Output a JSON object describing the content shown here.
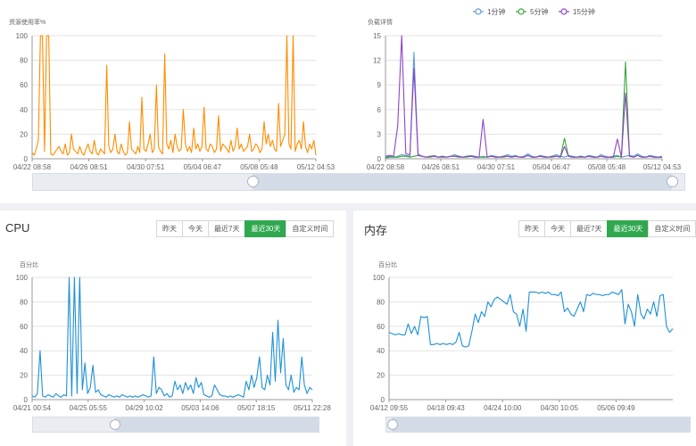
{
  "colors": {
    "resource": "#ff8c00",
    "load_1": "#5b9bd5",
    "load_5": "#3aa63a",
    "load_15": "#8e44c6",
    "cpu": "#1e90d6",
    "mem": "#1e90d6",
    "active_btn": "#2fa84f",
    "slider_fill": "#d3dbe6"
  },
  "cpu_panel": {
    "title": "CPU",
    "buttons": [
      {
        "label": "昨天",
        "active": false
      },
      {
        "label": "今天",
        "active": false
      },
      {
        "label": "最近7天",
        "active": false
      },
      {
        "label": "最近30天",
        "active": true
      },
      {
        "label": "自定义时间",
        "active": false
      }
    ]
  },
  "mem_panel": {
    "title": "内存",
    "buttons": [
      {
        "label": "昨天",
        "active": false
      },
      {
        "label": "今天",
        "active": false
      },
      {
        "label": "最近7天",
        "active": false
      },
      {
        "label": "最近30天",
        "active": true
      },
      {
        "label": "自定义时间",
        "active": false
      }
    ]
  },
  "chart_data": [
    {
      "id": "resource",
      "type": "line",
      "ylabel": "资源使用率%",
      "ylim": [
        0,
        100
      ],
      "yticks": [
        0,
        20,
        40,
        60,
        80,
        100
      ],
      "xticks": [
        "04/22 08:58",
        "04/26 08:51",
        "04/30 07:51",
        "05/04 06:47",
        "05/08 05:48",
        "05/12 04:53"
      ],
      "grid": true,
      "has_zoom_slider": true,
      "series": [
        {
          "values": [
            5,
            3,
            8,
            15,
            100,
            100,
            6,
            100,
            100,
            4,
            3,
            5,
            8,
            10,
            6,
            4,
            12,
            3,
            5,
            20,
            8,
            6,
            4,
            10,
            5,
            3,
            8,
            12,
            6,
            4,
            15,
            5,
            3,
            8,
            6,
            4,
            76,
            10,
            5,
            8,
            20,
            6,
            4,
            12,
            6,
            3,
            5,
            30,
            8,
            6,
            4,
            10,
            5,
            50,
            8,
            6,
            12,
            20,
            5,
            8,
            60,
            10,
            6,
            4,
            85,
            12,
            8,
            15,
            5,
            20,
            10,
            6,
            8,
            40,
            12,
            6,
            10,
            5,
            25,
            8,
            12,
            6,
            10,
            42,
            8,
            6,
            12,
            10,
            5,
            8,
            35,
            6,
            12,
            10,
            8,
            5,
            15,
            6,
            10,
            25,
            8,
            12,
            6,
            8,
            10,
            20,
            6,
            8,
            12,
            10,
            5,
            8,
            30,
            12,
            20,
            10,
            15,
            8,
            6,
            45,
            10,
            15,
            20,
            100,
            12,
            8,
            100,
            6,
            12,
            15,
            8,
            30,
            10,
            5,
            12,
            8,
            15,
            3
          ]
        }
      ]
    },
    {
      "id": "load",
      "type": "line",
      "ylabel": "负载详情",
      "ylim": [
        0,
        15
      ],
      "yticks": [
        0,
        3,
        6,
        9,
        12,
        15
      ],
      "xticks": [
        "04/22 08:58",
        "04/26 08:51",
        "04/30 07:51",
        "05/04 06:47",
        "05/08 05:48",
        "05/12 04:53"
      ],
      "legend_position": "top-right",
      "grid": true,
      "has_zoom_slider": true,
      "series": [
        {
          "name": "1分钟",
          "values": [
            0.2,
            0.3,
            0.2,
            0.3,
            0.5,
            0.4,
            0.3,
            13.0,
            0.6,
            0.3,
            0.2,
            0.3,
            0.4,
            0.2,
            0.3,
            0.2,
            0.3,
            0.5,
            0.3,
            0.2,
            0.3,
            0.4,
            0.3,
            0.2,
            0.3,
            0.2,
            0.4,
            0.3,
            0.2,
            0.3,
            0.5,
            0.3,
            0.4,
            0.2,
            0.3,
            0.6,
            0.3,
            0.2,
            0.4,
            0.3,
            0.2,
            0.3,
            0.5,
            0.3,
            0.2,
            0.4,
            0.3,
            0.2,
            0.3,
            0.2,
            0.4,
            0.3,
            0.2,
            0.5,
            0.3,
            0.2,
            0.3,
            0.4,
            0.2,
            0.3,
            0.4,
            0.3,
            0.6,
            0.3,
            0.2,
            0.4,
            0.3,
            0.2,
            0.3
          ]
        },
        {
          "name": "5分钟",
          "values": [
            0.1,
            0.2,
            0.2,
            0.2,
            0.3,
            0.3,
            0.2,
            0.3,
            0.4,
            0.3,
            0.2,
            0.2,
            0.3,
            0.2,
            0.2,
            0.2,
            0.3,
            0.3,
            0.2,
            0.2,
            0.2,
            0.3,
            0.2,
            0.2,
            0.2,
            0.2,
            0.3,
            0.2,
            0.2,
            0.2,
            0.3,
            0.2,
            0.3,
            0.2,
            0.2,
            0.4,
            0.2,
            0.2,
            0.3,
            0.2,
            0.2,
            0.2,
            0.3,
            0.2,
            2.5,
            0.3,
            0.2,
            0.2,
            0.2,
            0.2,
            0.3,
            0.2,
            0.2,
            0.3,
            0.2,
            0.2,
            0.2,
            0.3,
            0.2,
            11.8,
            0.3,
            0.2,
            0.4,
            0.2,
            0.2,
            0.3,
            0.2,
            0.2,
            0.2
          ]
        },
        {
          "name": "15分钟",
          "values": [
            0.3,
            0.4,
            0.3,
            4.0,
            15.0,
            0.6,
            0.5,
            11.0,
            0.4,
            0.3,
            0.2,
            0.3,
            0.3,
            0.2,
            0.3,
            0.2,
            0.3,
            0.3,
            0.3,
            0.2,
            0.3,
            0.3,
            0.2,
            0.2,
            4.8,
            0.2,
            0.3,
            0.2,
            0.2,
            0.3,
            0.3,
            0.2,
            0.3,
            0.2,
            0.2,
            0.4,
            0.2,
            0.2,
            0.3,
            0.2,
            0.2,
            0.3,
            0.3,
            0.2,
            1.5,
            0.3,
            0.2,
            0.2,
            0.3,
            0.2,
            0.3,
            0.2,
            0.2,
            0.3,
            0.2,
            0.2,
            0.2,
            2.4,
            0.2,
            8.0,
            0.3,
            0.2,
            0.4,
            0.2,
            0.2,
            0.3,
            0.2,
            0.2,
            0.2
          ]
        }
      ]
    },
    {
      "id": "cpu",
      "type": "line",
      "ylabel": "百分比",
      "ylim": [
        0,
        100
      ],
      "yticks": [
        0,
        20,
        40,
        60,
        80,
        100
      ],
      "xticks": [
        "04/21 00:54",
        "04/25 05:55",
        "04/29 10:02",
        "05/03 14:06",
        "05/07 18:15",
        "05/11 22:28"
      ],
      "grid": true,
      "has_zoom_slider": true,
      "series": [
        {
          "values": [
            3,
            2,
            5,
            40,
            3,
            2,
            4,
            3,
            2,
            5,
            3,
            2,
            4,
            3,
            100,
            3,
            100,
            5,
            100,
            8,
            30,
            5,
            10,
            28,
            6,
            8,
            4,
            3,
            2,
            4,
            3,
            2,
            3,
            2,
            4,
            3,
            2,
            3,
            2,
            3,
            2,
            3,
            4,
            3,
            2,
            3,
            35,
            5,
            10,
            8,
            3,
            5,
            2,
            3,
            15,
            8,
            12,
            5,
            14,
            8,
            12,
            5,
            18,
            10,
            14,
            4,
            3,
            2,
            3,
            12,
            8,
            4,
            3,
            3,
            2,
            3,
            2,
            3,
            4,
            3,
            2,
            15,
            8,
            20,
            10,
            18,
            35,
            10,
            8,
            20,
            12,
            55,
            15,
            65,
            22,
            50,
            12,
            8,
            20,
            6,
            10,
            8,
            35,
            12,
            5,
            10,
            8
          ]
        }
      ]
    },
    {
      "id": "mem",
      "type": "line",
      "ylabel": "百分比",
      "ylim": [
        0,
        100
      ],
      "yticks": [
        0,
        20,
        40,
        60,
        80,
        100
      ],
      "xticks": [
        "04/12 09:55",
        "04/18 09:43",
        "04/24 10:00",
        "04/30 10:05",
        "05/06 09:49"
      ],
      "grid": true,
      "has_zoom_slider": true,
      "series": [
        {
          "values": [
            55,
            54,
            53,
            54,
            53,
            53,
            62,
            54,
            60,
            53,
            68,
            67,
            68,
            45,
            45,
            46,
            45,
            46,
            45,
            46,
            45,
            47,
            55,
            44,
            43,
            44,
            56,
            70,
            63,
            72,
            68,
            80,
            76,
            82,
            84,
            82,
            80,
            78,
            86,
            72,
            70,
            60,
            74,
            56,
            88,
            88,
            88,
            87,
            88,
            87,
            88,
            86,
            86,
            85,
            88,
            72,
            75,
            70,
            68,
            74,
            80,
            72,
            86,
            85,
            87,
            86,
            86,
            85,
            86,
            86,
            88,
            87,
            86,
            90,
            62,
            78,
            72,
            60,
            86,
            70,
            66,
            74,
            70,
            80,
            68,
            85,
            86,
            60,
            55,
            58
          ]
        }
      ]
    }
  ]
}
